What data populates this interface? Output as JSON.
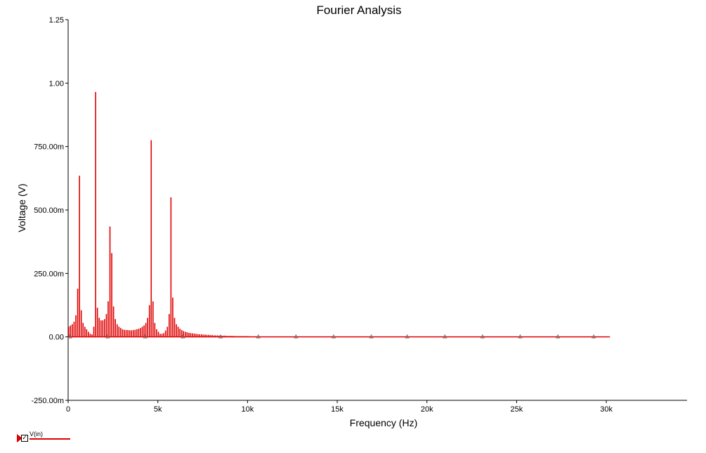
{
  "chart_data": {
    "type": "bar",
    "title": "Fourier Analysis",
    "xlabel": "Frequency (Hz)",
    "ylabel": "Voltage (V)",
    "xlim": [
      0,
      34500
    ],
    "ylim": [
      -0.25,
      1.25
    ],
    "xticks": [
      0,
      5000,
      10000,
      15000,
      20000,
      25000,
      30000
    ],
    "xtick_labels": [
      "0",
      "5k",
      "10k",
      "15k",
      "20k",
      "25k",
      "30k"
    ],
    "yticks": [
      -0.25,
      0,
      0.25,
      0.5,
      0.75,
      1.0,
      1.25
    ],
    "ytick_labels": [
      "-250.00m",
      "0.00",
      "250.00m",
      "500.00m",
      "750.00m",
      "1.00",
      "1.25"
    ],
    "grid": false,
    "legend_position": "bottom-left",
    "series": [
      {
        "name": "V(in)",
        "color": "#e00000",
        "x": [
          0,
          100,
          200,
          300,
          400,
          500,
          600,
          700,
          800,
          900,
          1000,
          1100,
          1200,
          1300,
          1400,
          1500,
          1600,
          1700,
          1800,
          1900,
          2000,
          2100,
          2200,
          2300,
          2400,
          2500,
          2600,
          2700,
          2800,
          2900,
          3000,
          3100,
          3200,
          3300,
          3400,
          3500,
          3600,
          3700,
          3800,
          3900,
          4000,
          4100,
          4200,
          4300,
          4400,
          4500,
          4600,
          4700,
          4800,
          4900,
          5000,
          5100,
          5200,
          5300,
          5400,
          5500,
          5600,
          5700,
          5800,
          5900,
          6000,
          6100,
          6200,
          6300,
          6400,
          6500,
          6600,
          6700,
          6800,
          6900,
          7000,
          7100,
          7200,
          7300,
          7400,
          7500,
          7600,
          7700,
          7800,
          7900,
          8000,
          8100,
          8200,
          8300,
          8400,
          8500,
          8600,
          8700,
          8800,
          8900,
          9000,
          9100,
          9200,
          9300,
          9400,
          9500,
          9600,
          9700,
          9800,
          9900,
          10000,
          10100,
          10200,
          10300,
          10400,
          10500,
          10600,
          10700
        ],
        "values": [
          0.04,
          0.045,
          0.05,
          0.06,
          0.085,
          0.19,
          0.635,
          0.105,
          0.055,
          0.04,
          0.03,
          0.02,
          0.012,
          0.01,
          0.04,
          0.965,
          0.115,
          0.075,
          0.065,
          0.065,
          0.07,
          0.09,
          0.14,
          0.435,
          0.33,
          0.12,
          0.07,
          0.05,
          0.04,
          0.035,
          0.03,
          0.028,
          0.027,
          0.027,
          0.026,
          0.026,
          0.027,
          0.028,
          0.03,
          0.032,
          0.035,
          0.04,
          0.045,
          0.055,
          0.075,
          0.125,
          0.775,
          0.14,
          0.055,
          0.03,
          0.02,
          0.012,
          0.012,
          0.015,
          0.025,
          0.04,
          0.09,
          0.55,
          0.155,
          0.075,
          0.05,
          0.04,
          0.032,
          0.027,
          0.023,
          0.02,
          0.018,
          0.016,
          0.015,
          0.014,
          0.013,
          0.012,
          0.011,
          0.01,
          0.01,
          0.009,
          0.009,
          0.008,
          0.008,
          0.007,
          0.007,
          0.006,
          0.006,
          0.006,
          0.005,
          0.005,
          0.005,
          0.005,
          0.004,
          0.004,
          0.004,
          0.004,
          0.004,
          0.003,
          0.003,
          0.003,
          0.003,
          0.003,
          0.003,
          0.003,
          0.003,
          0.002,
          0.002,
          0.002,
          0.002,
          0.002,
          0.002,
          0.002
        ]
      }
    ],
    "baseline_markers_x": [
      100,
      2200,
      4300,
      6400,
      8500,
      10600,
      12700,
      14800,
      16900,
      18900,
      21000,
      23100,
      25200,
      27300,
      29300
    ],
    "baseline_end_x": 30200
  }
}
